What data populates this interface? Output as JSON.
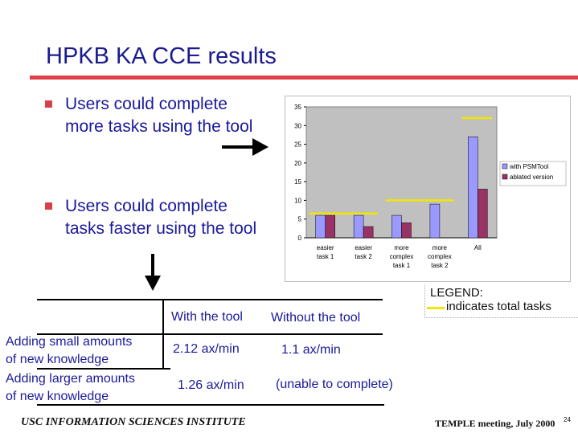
{
  "slide": {
    "title": "HPKB KA CCE results",
    "bullets": [
      "Users could complete more tasks using the tool",
      "Users could complete tasks faster using the tool"
    ]
  },
  "chart_data": {
    "type": "bar",
    "categories": [
      [
        "easier",
        "task 1"
      ],
      [
        "easier",
        "task 2"
      ],
      [
        "more",
        "complex",
        "task 1"
      ],
      [
        "more",
        "complex",
        "task 2"
      ],
      [
        "All"
      ]
    ],
    "series": [
      {
        "name": "with PSMTool",
        "values": [
          6,
          6,
          6,
          9,
          27
        ],
        "color": "#9999ff"
      },
      {
        "name": "ablated version",
        "values": [
          6,
          3,
          4,
          0,
          13
        ],
        "color": "#993366"
      }
    ],
    "total_tasks": [
      {
        "from_category": 0,
        "to_category": 1,
        "value": 6.5
      },
      {
        "from_category": 2,
        "to_category": 3,
        "value": 10
      },
      {
        "from_category": 4,
        "to_category": 4,
        "value": 32
      }
    ],
    "total_tasks_color": "#f2e600",
    "ylim": [
      0,
      35
    ],
    "yticks": [
      0,
      5,
      10,
      15,
      20,
      25,
      30,
      35
    ],
    "grid": false,
    "plot_background": "#c0c0c0",
    "legend_position": "right"
  },
  "legend": {
    "heading": "LEGEND:",
    "item": "indicates total tasks"
  },
  "table": {
    "headers": [
      "With the tool",
      "Without the tool"
    ],
    "rows": [
      {
        "label": [
          "Adding small amounts",
          "of new knowledge"
        ],
        "with": "2.12 ax/min",
        "without": "1.1 ax/min"
      },
      {
        "label": [
          "Adding larger amounts",
          "of new knowledge"
        ],
        "with": "1.26 ax/min",
        "without": "(unable to complete)"
      }
    ]
  },
  "footer": {
    "left": "USC INFORMATION SCIENCES INSTITUTE",
    "right": "TEMPLE meeting, July 2000",
    "page": "24"
  }
}
